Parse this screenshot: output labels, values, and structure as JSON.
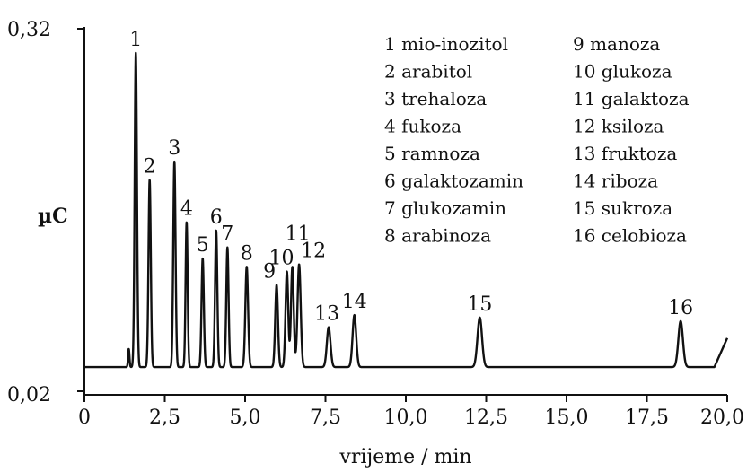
{
  "chart_data": {
    "type": "line",
    "title": "",
    "xlabel": "vrijeme / min",
    "ylabel": "µC",
    "xlim": [
      0,
      20
    ],
    "ylim": [
      0.02,
      0.32
    ],
    "x_ticks": [
      "0",
      "2,5",
      "5,0",
      "7,5",
      "10,0",
      "12,5",
      "15,0",
      "17,5",
      "20,0"
    ],
    "x_tick_values": [
      0,
      2.5,
      5,
      7.5,
      10,
      12.5,
      15,
      17.5,
      20
    ],
    "y_ticks": [
      "0,32",
      "0,02"
    ],
    "y_tick_values": [
      0.32,
      0.02
    ],
    "grid": false,
    "legend_position": "top-right",
    "baseline": 0.04,
    "peaks": [
      {
        "label": "1",
        "name": "mio-inozitol",
        "x": 1.6,
        "y": 0.3
      },
      {
        "label": "2",
        "name": "arabitol",
        "x": 2.03,
        "y": 0.195
      },
      {
        "label": "3",
        "name": "trehaloza",
        "x": 2.8,
        "y": 0.21
      },
      {
        "label": "4",
        "name": "fukoza",
        "x": 3.18,
        "y": 0.16
      },
      {
        "label": "5",
        "name": "ramnoza",
        "x": 3.68,
        "y": 0.13
      },
      {
        "label": "6",
        "name": "galaktozamin",
        "x": 4.1,
        "y": 0.153
      },
      {
        "label": "7",
        "name": "glukozamin",
        "x": 4.45,
        "y": 0.139
      },
      {
        "label": "8",
        "name": "arabinoza",
        "x": 5.05,
        "y": 0.123
      },
      {
        "label": "9",
        "name": "manoza",
        "x": 5.98,
        "y": 0.108
      },
      {
        "label": "10",
        "name": "glukoza",
        "x": 6.3,
        "y": 0.119
      },
      {
        "label": "11",
        "name": "galaktoza",
        "x": 6.47,
        "y": 0.123
      },
      {
        "label": "12",
        "name": "ksiloza",
        "x": 6.68,
        "y": 0.125
      },
      {
        "label": "13",
        "name": "fruktoza",
        "x": 7.6,
        "y": 0.073
      },
      {
        "label": "14",
        "name": "riboza",
        "x": 8.4,
        "y": 0.083
      },
      {
        "label": "15",
        "name": "sukroza",
        "x": 12.3,
        "y": 0.081
      },
      {
        "label": "16",
        "name": "celobioza",
        "x": 18.55,
        "y": 0.078
      }
    ]
  },
  "legend": [
    "1 mio-inozitol",
    "2 arabitol",
    "3 trehaloza",
    "4 fukoza",
    "5 ramnoza",
    "6 galaktozamin",
    "7 glukozamin",
    "8 arabinoza",
    "9 manoza",
    "10 glukoza",
    "11 galaktoza",
    "12 ksiloza",
    "13 fruktoza",
    "14 riboza",
    "15 sukroza",
    "16 celobioza"
  ]
}
